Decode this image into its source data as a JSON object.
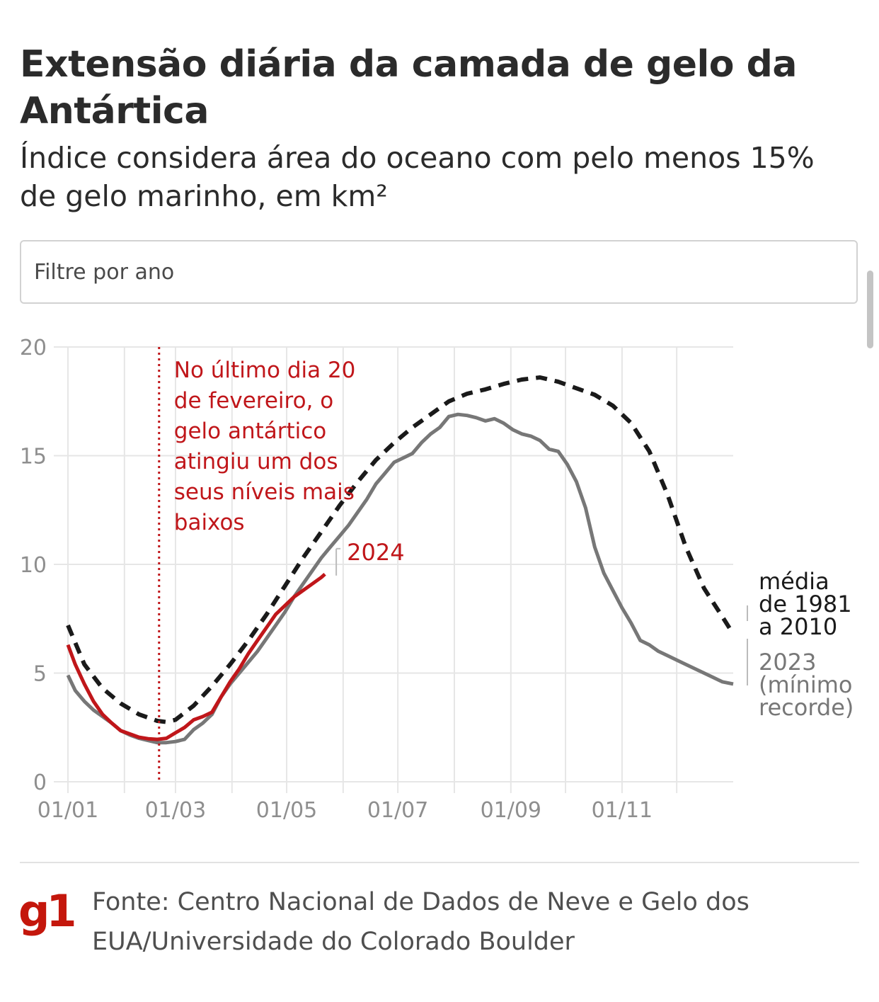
{
  "title": "Extensão diária da camada de gelo da Antártica",
  "subtitle": "Índice considera área do oceano com pelo menos 15% de gelo marinho, em km²",
  "filter": {
    "placeholder": "Filtre por ano"
  },
  "chart_data": {
    "type": "line",
    "title": "Extensão diária da camada de gelo da Antártica",
    "xlabel": "",
    "ylabel": "",
    "ylim": [
      0,
      20
    ],
    "xlim": [
      1,
      366
    ],
    "grid": true,
    "y_ticks": [
      0,
      5,
      10,
      15,
      20
    ],
    "x_tick_labels": [
      {
        "label": "01/01",
        "day": 1
      },
      {
        "label": "01/03",
        "day": 60
      },
      {
        "label": "01/05",
        "day": 121
      },
      {
        "label": "01/07",
        "day": 182
      },
      {
        "label": "01/09",
        "day": 244
      },
      {
        "label": "01/11",
        "day": 305
      }
    ],
    "x_grid_days": [
      1,
      32,
      60,
      91,
      121,
      152,
      182,
      213,
      244,
      274,
      305,
      335
    ],
    "series": [
      {
        "name": "média de 1981 a 2010",
        "color": "#1a1a1a",
        "style": "dashed",
        "x": [
          1,
          10,
          20,
          30,
          40,
          50,
          55,
          60,
          70,
          80,
          90,
          100,
          110,
          120,
          130,
          140,
          150,
          160,
          170,
          180,
          190,
          200,
          210,
          220,
          230,
          240,
          250,
          260,
          270,
          280,
          290,
          300,
          310,
          320,
          330,
          340,
          350,
          360,
          366
        ],
        "values": [
          7.2,
          5.4,
          4.3,
          3.6,
          3.1,
          2.8,
          2.75,
          2.85,
          3.5,
          4.4,
          5.4,
          6.5,
          7.7,
          9.0,
          10.3,
          11.5,
          12.7,
          13.8,
          14.8,
          15.6,
          16.3,
          16.9,
          17.5,
          17.85,
          18.05,
          18.3,
          18.5,
          18.6,
          18.4,
          18.1,
          17.8,
          17.3,
          16.5,
          15.2,
          13.2,
          10.8,
          8.9,
          7.6,
          6.8
        ]
      },
      {
        "name": "2023 (mínimo recorde)",
        "color": "#777777",
        "style": "solid",
        "x": [
          1,
          5,
          10,
          15,
          20,
          25,
          30,
          35,
          40,
          45,
          50,
          55,
          60,
          65,
          70,
          75,
          80,
          85,
          90,
          95,
          100,
          105,
          110,
          115,
          120,
          125,
          130,
          135,
          140,
          145,
          150,
          155,
          160,
          165,
          170,
          175,
          180,
          185,
          190,
          195,
          200,
          205,
          210,
          215,
          220,
          225,
          230,
          235,
          240,
          245,
          250,
          255,
          260,
          265,
          270,
          275,
          280,
          285,
          290,
          295,
          300,
          305,
          310,
          315,
          320,
          325,
          330,
          335,
          340,
          345,
          350,
          355,
          360,
          366
        ],
        "values": [
          4.9,
          4.2,
          3.7,
          3.3,
          3.0,
          2.7,
          2.35,
          2.15,
          2.0,
          1.9,
          1.8,
          1.8,
          1.85,
          1.95,
          2.4,
          2.7,
          3.1,
          3.9,
          4.5,
          5.0,
          5.5,
          6.0,
          6.6,
          7.2,
          7.8,
          8.5,
          9.1,
          9.7,
          10.3,
          10.8,
          11.3,
          11.8,
          12.4,
          13.0,
          13.7,
          14.2,
          14.7,
          14.9,
          15.1,
          15.6,
          16.0,
          16.3,
          16.8,
          16.9,
          16.85,
          16.75,
          16.6,
          16.7,
          16.5,
          16.2,
          16.0,
          15.9,
          15.7,
          15.3,
          15.2,
          14.6,
          13.8,
          12.6,
          10.8,
          9.6,
          8.8,
          8.0,
          7.3,
          6.5,
          6.3,
          6.0,
          5.8,
          5.6,
          5.4,
          5.2,
          5.0,
          4.8,
          4.6,
          4.5
        ]
      },
      {
        "name": "2024",
        "color": "#c0161a",
        "style": "solid",
        "x": [
          1,
          5,
          10,
          15,
          20,
          25,
          30,
          35,
          40,
          45,
          50,
          55,
          60,
          65,
          70,
          75,
          80,
          85,
          90,
          95,
          100,
          105,
          110,
          115,
          120,
          125,
          130,
          135,
          140,
          142
        ],
        "values": [
          6.3,
          5.4,
          4.5,
          3.7,
          3.1,
          2.7,
          2.35,
          2.2,
          2.05,
          1.98,
          1.95,
          2.0,
          2.25,
          2.5,
          2.85,
          3.0,
          3.2,
          3.9,
          4.6,
          5.2,
          5.9,
          6.5,
          7.1,
          7.7,
          8.1,
          8.5,
          8.8,
          9.1,
          9.4,
          9.55
        ]
      }
    ],
    "annotations": [
      {
        "type": "vline",
        "day": 51,
        "color": "#c0161a",
        "text": [
          "No último dia 20",
          "de fevereiro, o",
          "gelo antártico",
          "atingiu um dos",
          "seus níveis mais",
          "baixos"
        ]
      }
    ],
    "series_labels": {
      "current": "2024",
      "average": [
        "média",
        "de 1981",
        "a 2010"
      ],
      "record": [
        "2023",
        "(mínimo",
        "recorde)"
      ]
    }
  },
  "footer": {
    "logo": "g1",
    "source": "Fonte: Centro Nacional de Dados de Neve e Gelo dos EUA/Universidade do Colorado Boulder"
  }
}
